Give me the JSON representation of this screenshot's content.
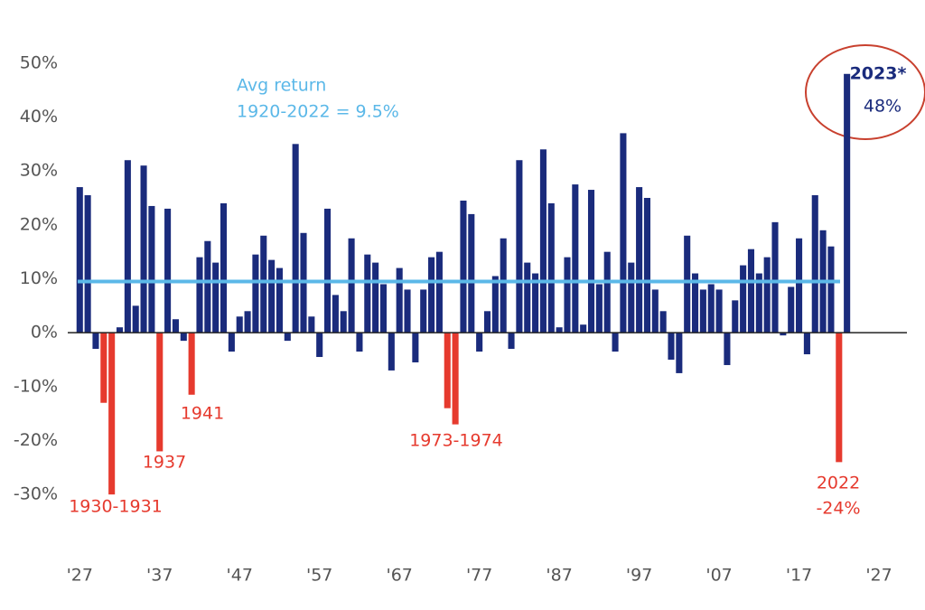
{
  "chart_data": {
    "type": "bar",
    "x": [
      1927,
      1928,
      1929,
      1930,
      1931,
      1932,
      1933,
      1934,
      1935,
      1936,
      1937,
      1938,
      1939,
      1940,
      1941,
      1942,
      1943,
      1944,
      1945,
      1946,
      1947,
      1948,
      1949,
      1950,
      1951,
      1952,
      1953,
      1954,
      1955,
      1956,
      1957,
      1958,
      1959,
      1960,
      1961,
      1962,
      1963,
      1964,
      1965,
      1966,
      1967,
      1968,
      1969,
      1970,
      1971,
      1972,
      1973,
      1974,
      1975,
      1976,
      1977,
      1978,
      1979,
      1980,
      1981,
      1982,
      1983,
      1984,
      1985,
      1986,
      1987,
      1988,
      1989,
      1990,
      1991,
      1992,
      1993,
      1994,
      1995,
      1996,
      1997,
      1998,
      1999,
      2000,
      2001,
      2002,
      2003,
      2004,
      2005,
      2006,
      2007,
      2008,
      2009,
      2010,
      2011,
      2012,
      2013,
      2014,
      2015,
      2016,
      2017,
      2018,
      2019,
      2020,
      2021,
      2022,
      2023
    ],
    "values": [
      27,
      25.5,
      -3,
      -13,
      -30,
      1,
      32,
      5,
      31,
      23.5,
      -22,
      23,
      2.5,
      -1.5,
      -11.5,
      14,
      17,
      13,
      24,
      -3.5,
      3,
      4,
      14.5,
      18,
      13.5,
      12,
      -1.5,
      35,
      18.5,
      3,
      -4.5,
      23,
      7,
      4,
      17.5,
      -3.5,
      14.5,
      13,
      9,
      -7,
      12,
      8,
      -5.5,
      8,
      14,
      15,
      -14,
      -17,
      24.5,
      22,
      -3.5,
      4,
      10.5,
      17.5,
      -3,
      32,
      13,
      11,
      34,
      24,
      1,
      14,
      27.5,
      1.5,
      26.5,
      9,
      15,
      -3.5,
      37,
      13,
      27,
      25,
      8,
      4,
      -5,
      -7.5,
      18,
      11,
      8,
      9,
      8,
      -6,
      6,
      12.5,
      15.5,
      11,
      14,
      20.5,
      -0.5,
      8.5,
      17.5,
      -4,
      25.5,
      19,
      16,
      -24,
      48
    ],
    "value_labels": [
      null,
      null,
      null,
      null,
      null,
      null,
      null,
      null,
      null,
      null,
      null,
      null,
      null,
      null,
      null,
      null,
      null,
      null,
      null,
      null,
      null,
      null,
      null,
      null,
      null,
      null,
      null,
      null,
      null,
      null,
      null,
      null,
      null,
      null,
      null,
      null,
      null,
      null,
      null,
      null,
      null,
      null,
      null,
      null,
      null,
      null,
      null,
      null,
      null,
      null,
      null,
      null,
      null,
      null,
      null,
      null,
      null,
      null,
      null,
      null,
      null,
      null,
      null,
      null,
      null,
      null,
      null,
      null,
      null,
      null,
      null,
      null,
      null,
      null,
      null,
      null,
      null,
      null,
      null,
      null,
      null,
      null,
      null,
      null,
      null,
      null,
      null,
      null,
      null,
      null,
      null,
      null,
      null,
      null,
      null,
      "-24%",
      "48%"
    ],
    "colors": [
      "#1a2b7c",
      "#1a2b7c",
      "#1a2b7c",
      "#e63a2e",
      "#e63a2e",
      "#1a2b7c",
      "#1a2b7c",
      "#1a2b7c",
      "#1a2b7c",
      "#1a2b7c",
      "#e63a2e",
      "#1a2b7c",
      "#1a2b7c",
      "#1a2b7c",
      "#e63a2e",
      "#1a2b7c",
      "#1a2b7c",
      "#1a2b7c",
      "#1a2b7c",
      "#1a2b7c",
      "#1a2b7c",
      "#1a2b7c",
      "#1a2b7c",
      "#1a2b7c",
      "#1a2b7c",
      "#1a2b7c",
      "#1a2b7c",
      "#1a2b7c",
      "#1a2b7c",
      "#1a2b7c",
      "#1a2b7c",
      "#1a2b7c",
      "#1a2b7c",
      "#1a2b7c",
      "#1a2b7c",
      "#1a2b7c",
      "#1a2b7c",
      "#1a2b7c",
      "#1a2b7c",
      "#1a2b7c",
      "#1a2b7c",
      "#1a2b7c",
      "#1a2b7c",
      "#1a2b7c",
      "#1a2b7c",
      "#1a2b7c",
      "#e63a2e",
      "#e63a2e",
      "#1a2b7c",
      "#1a2b7c",
      "#1a2b7c",
      "#1a2b7c",
      "#1a2b7c",
      "#1a2b7c",
      "#1a2b7c",
      "#1a2b7c",
      "#1a2b7c",
      "#1a2b7c",
      "#1a2b7c",
      "#1a2b7c",
      "#1a2b7c",
      "#1a2b7c",
      "#1a2b7c",
      "#1a2b7c",
      "#1a2b7c",
      "#1a2b7c",
      "#1a2b7c",
      "#1a2b7c",
      "#1a2b7c",
      "#1a2b7c",
      "#1a2b7c",
      "#1a2b7c",
      "#1a2b7c",
      "#1a2b7c",
      "#1a2b7c",
      "#1a2b7c",
      "#1a2b7c",
      "#1a2b7c",
      "#1a2b7c",
      "#1a2b7c",
      "#1a2b7c",
      "#1a2b7c",
      "#1a2b7c",
      "#1a2b7c",
      "#1a2b7c",
      "#1a2b7c",
      "#1a2b7c",
      "#1a2b7c",
      "#1a2b7c",
      "#1a2b7c",
      "#1a2b7c",
      "#1a2b7c",
      "#1a2b7c",
      "#1a2b7c",
      "#1a2b7c",
      "#e63a2e",
      "#1a2b7c"
    ],
    "average": {
      "value": 9.5,
      "color": "#5bb8e8"
    },
    "annotations": [
      {
        "text": "Avg return",
        "color": "#5bb8e8"
      },
      {
        "text": "1920-2022 = 9.5%",
        "color": "#5bb8e8"
      },
      {
        "text": "1930-1931",
        "color": "#e63a2e"
      },
      {
        "text": "1937",
        "color": "#e63a2e"
      },
      {
        "text": "1941",
        "color": "#e63a2e"
      },
      {
        "text": "1973-1974",
        "color": "#e63a2e"
      },
      {
        "text": "2022",
        "color": "#e63a2e"
      },
      {
        "text": "2023*",
        "color": "#1a2b7c"
      }
    ],
    "xlim": [
      1925.5,
      2030.5
    ],
    "xticks": [
      {
        "value": 1927,
        "label": "'27"
      },
      {
        "value": 1937,
        "label": "'37"
      },
      {
        "value": 1947,
        "label": "'47"
      },
      {
        "value": 1957,
        "label": "'57"
      },
      {
        "value": 1967,
        "label": "'67"
      },
      {
        "value": 1977,
        "label": "'77"
      },
      {
        "value": 1987,
        "label": "'87"
      },
      {
        "value": 1997,
        "label": "'97"
      },
      {
        "value": 2007,
        "label": "'07"
      },
      {
        "value": 2017,
        "label": "'17"
      },
      {
        "value": 2027,
        "label": "'27"
      }
    ],
    "ylim": [
      -35,
      55
    ],
    "yticks": [
      {
        "value": -30,
        "label": "-30%"
      },
      {
        "value": -20,
        "label": "-20%"
      },
      {
        "value": -10,
        "label": "-10%"
      },
      {
        "value": 0,
        "label": "0%"
      },
      {
        "value": 10,
        "label": "10%"
      },
      {
        "value": 20,
        "label": "20%"
      },
      {
        "value": 30,
        "label": "30%"
      },
      {
        "value": 40,
        "label": "40%"
      },
      {
        "value": 50,
        "label": "50%"
      }
    ],
    "grid": false
  }
}
